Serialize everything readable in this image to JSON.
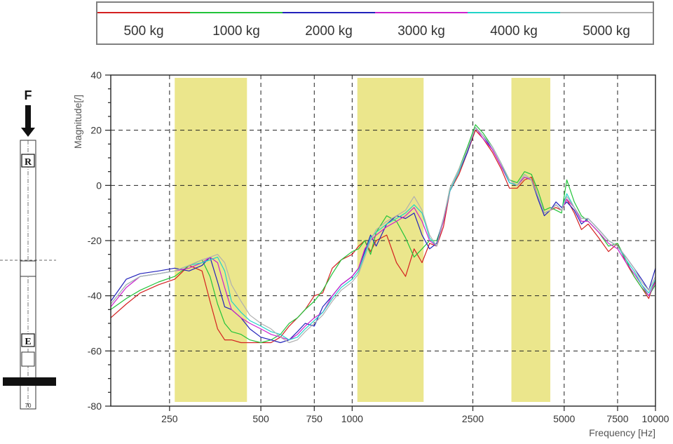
{
  "chart_data": {
    "type": "line",
    "xlabel": "Frequency [Hz]",
    "ylabel": "Magnitude[/]",
    "xlim": [
      160,
      10000
    ],
    "x_scale": "log",
    "ylim": [
      -80,
      40
    ],
    "grid": true,
    "legend_position": "top",
    "x_ticks": [
      250,
      500,
      750,
      1000,
      2500,
      5000,
      7500,
      10000
    ],
    "x_tick_labels": [
      "250",
      "500",
      "750",
      "1000",
      "2500",
      "5000",
      "7500",
      "10000"
    ],
    "y_ticks": [
      40,
      20,
      0,
      -20,
      -40,
      -60,
      -80
    ],
    "bands": [
      {
        "from": 260,
        "to": 450,
        "color": "#ebe68c"
      },
      {
        "from": 1040,
        "to": 1720,
        "color": "#ebe68c"
      },
      {
        "from": 3350,
        "to": 4500,
        "color": "#ebe68c"
      }
    ],
    "series": [
      {
        "name": "500 kg",
        "color": "#d42020",
        "x": [
          160,
          180,
          200,
          230,
          260,
          290,
          320,
          340,
          360,
          380,
          400,
          430,
          460,
          500,
          540,
          580,
          620,
          660,
          700,
          750,
          800,
          860,
          920,
          1000,
          1050,
          1100,
          1150,
          1200,
          1300,
          1400,
          1500,
          1600,
          1700,
          1800,
          1900,
          2000,
          2100,
          2250,
          2400,
          2550,
          2700,
          2900,
          3100,
          3300,
          3500,
          3700,
          3900,
          4100,
          4300,
          4500,
          4700,
          4900,
          5100,
          5400,
          5700,
          6000,
          6500,
          7000,
          7500,
          8000,
          8500,
          9000,
          9500,
          10000
        ],
        "y": [
          -48,
          -43,
          -39,
          -36,
          -34,
          -29,
          -31,
          -42,
          -52,
          -56,
          -56,
          -57,
          -57,
          -57,
          -57,
          -55,
          -51,
          -48,
          -45,
          -40,
          -39,
          -30,
          -27,
          -25,
          -22,
          -20,
          -24,
          -20,
          -18,
          -28,
          -33,
          -23,
          -28,
          -21,
          -22,
          -15,
          -2,
          4,
          12,
          20,
          17,
          12,
          6,
          -1,
          -1,
          2,
          3,
          -4,
          -10,
          -9,
          -8,
          -9,
          -5,
          -10,
          -16,
          -14,
          -19,
          -24,
          -21,
          -28,
          -33,
          -37,
          -41,
          -34
        ]
      },
      {
        "name": "1000 kg",
        "color": "#22c43a",
        "x": [
          160,
          180,
          200,
          230,
          260,
          290,
          320,
          340,
          360,
          380,
          400,
          430,
          460,
          500,
          540,
          580,
          620,
          660,
          700,
          750,
          800,
          860,
          920,
          1000,
          1050,
          1100,
          1150,
          1200,
          1300,
          1400,
          1500,
          1600,
          1700,
          1800,
          1900,
          2000,
          2100,
          2250,
          2400,
          2550,
          2700,
          2900,
          3100,
          3300,
          3500,
          3700,
          3900,
          4100,
          4300,
          4500,
          4700,
          4900,
          5100,
          5400,
          5700,
          6000,
          6500,
          7000,
          7500,
          8000,
          8500,
          9000,
          9500,
          10000
        ],
        "y": [
          -45,
          -41,
          -38,
          -35,
          -33,
          -29,
          -27,
          -33,
          -43,
          -50,
          -53,
          -54,
          -56,
          -57,
          -56,
          -54,
          -50,
          -48,
          -45,
          -42,
          -38,
          -32,
          -27,
          -24,
          -23,
          -20,
          -25,
          -17,
          -11,
          -13,
          -19,
          -26,
          -23,
          -20,
          -20,
          -13,
          -1,
          6,
          14,
          22,
          19,
          14,
          8,
          2,
          1,
          5,
          4,
          -2,
          -9,
          -8,
          -9,
          -10,
          2,
          -6,
          -11,
          -13,
          -17,
          -22,
          -21,
          -27,
          -33,
          -37,
          -40,
          -36
        ]
      },
      {
        "name": "2000 kg",
        "color": "#2222bb",
        "x": [
          160,
          180,
          200,
          230,
          260,
          290,
          320,
          340,
          360,
          380,
          400,
          430,
          460,
          500,
          540,
          580,
          620,
          660,
          700,
          750,
          800,
          860,
          920,
          1000,
          1050,
          1100,
          1150,
          1200,
          1300,
          1400,
          1500,
          1600,
          1700,
          1800,
          1900,
          2000,
          2100,
          2250,
          2400,
          2550,
          2700,
          2900,
          3100,
          3300,
          3500,
          3700,
          3900,
          4100,
          4300,
          4500,
          4700,
          4900,
          5100,
          5400,
          5700,
          6000,
          6500,
          7000,
          7500,
          8000,
          8500,
          9000,
          9500,
          10000
        ],
        "y": [
          -42,
          -34,
          -32,
          -31,
          -30,
          -31,
          -29,
          -26,
          -35,
          -44,
          -45,
          -48,
          -52,
          -55,
          -56,
          -57,
          -56,
          -53,
          -50,
          -51,
          -44,
          -40,
          -36,
          -33,
          -30,
          -24,
          -18,
          -22,
          -14,
          -11,
          -12,
          -10,
          -18,
          -23,
          -21,
          -12,
          -2,
          5,
          12,
          21,
          18,
          13,
          7,
          1,
          0,
          3,
          2,
          -5,
          -11,
          -9,
          -6,
          -8,
          -6,
          -9,
          -14,
          -12,
          -16,
          -20,
          -22,
          -26,
          -30,
          -34,
          -38,
          -30
        ]
      },
      {
        "name": "3000 kg",
        "color": "#cc22cc",
        "x": [
          160,
          180,
          200,
          230,
          260,
          290,
          320,
          340,
          360,
          380,
          400,
          430,
          460,
          500,
          540,
          580,
          620,
          660,
          700,
          750,
          800,
          860,
          920,
          1000,
          1050,
          1100,
          1150,
          1200,
          1300,
          1400,
          1500,
          1600,
          1700,
          1800,
          1900,
          2000,
          2100,
          2250,
          2400,
          2550,
          2700,
          2900,
          3100,
          3300,
          3500,
          3700,
          3900,
          4100,
          4300,
          4500,
          4700,
          4900,
          5100,
          5400,
          5700,
          6000,
          6500,
          7000,
          7500,
          8000,
          8500,
          9000,
          9500,
          10000
        ],
        "y": [
          -44,
          -37,
          -33,
          -32,
          -31,
          -30,
          -28,
          -26,
          -28,
          -37,
          -45,
          -48,
          -50,
          -52,
          -54,
          -55,
          -56,
          -54,
          -51,
          -48,
          -46,
          -40,
          -36,
          -33,
          -30,
          -23,
          -20,
          -18,
          -15,
          -13,
          -11,
          -8,
          -13,
          -20,
          -22,
          -13,
          -2,
          5,
          13,
          21,
          17,
          13,
          7,
          1,
          0,
          3,
          2,
          -4,
          -10,
          -9,
          -7,
          -9,
          -5,
          -8,
          -13,
          -13,
          -17,
          -21,
          -23,
          -28,
          -32,
          -36,
          -40,
          -35
        ]
      },
      {
        "name": "4000 kg",
        "color": "#22d4c8",
        "x": [
          160,
          180,
          200,
          230,
          260,
          290,
          320,
          340,
          360,
          380,
          400,
          430,
          460,
          500,
          540,
          580,
          620,
          660,
          700,
          750,
          800,
          860,
          920,
          1000,
          1050,
          1100,
          1150,
          1200,
          1300,
          1400,
          1500,
          1600,
          1700,
          1800,
          1900,
          2000,
          2100,
          2250,
          2400,
          2550,
          2700,
          2900,
          3100,
          3300,
          3500,
          3700,
          3900,
          4100,
          4300,
          4500,
          4700,
          4900,
          5100,
          5400,
          5700,
          6000,
          6500,
          7000,
          7500,
          8000,
          8500,
          9000,
          9500,
          10000
        ],
        "y": [
          -43,
          -36,
          -33,
          -32,
          -31,
          -29,
          -28,
          -27,
          -26,
          -31,
          -42,
          -46,
          -49,
          -51,
          -53,
          -54,
          -56,
          -55,
          -52,
          -49,
          -46,
          -41,
          -37,
          -34,
          -31,
          -25,
          -19,
          -17,
          -14,
          -12,
          -10,
          -7,
          -10,
          -19,
          -22,
          -12,
          -2,
          5,
          13,
          21,
          18,
          14,
          8,
          1,
          0,
          4,
          2,
          -4,
          -10,
          -9,
          -7,
          -9,
          -3,
          -8,
          -12,
          -12,
          -16,
          -20,
          -22,
          -27,
          -31,
          -36,
          -39,
          -34
        ]
      },
      {
        "name": "5000 kg",
        "color": "#b0b0b0",
        "x": [
          160,
          180,
          200,
          230,
          260,
          290,
          320,
          340,
          360,
          380,
          400,
          430,
          460,
          500,
          540,
          580,
          620,
          660,
          700,
          750,
          800,
          860,
          920,
          1000,
          1050,
          1100,
          1150,
          1200,
          1300,
          1400,
          1500,
          1600,
          1700,
          1800,
          1900,
          2000,
          2100,
          2250,
          2400,
          2550,
          2700,
          2900,
          3100,
          3300,
          3500,
          3700,
          3900,
          4100,
          4300,
          4500,
          4700,
          4900,
          5100,
          5400,
          5700,
          6000,
          6500,
          7000,
          7500,
          8000,
          8500,
          9000,
          9500,
          10000
        ],
        "y": [
          -43,
          -36,
          -33,
          -32,
          -31,
          -29,
          -27,
          -26,
          -25,
          -28,
          -36,
          -42,
          -47,
          -50,
          -52,
          -55,
          -57,
          -56,
          -53,
          -50,
          -47,
          -42,
          -38,
          -35,
          -32,
          -26,
          -20,
          -16,
          -13,
          -11,
          -9,
          -4,
          -9,
          -18,
          -22,
          -12,
          -1,
          6,
          13,
          21,
          18,
          14,
          8,
          2,
          0,
          4,
          2,
          -4,
          -10,
          -9,
          -7,
          -9,
          -4,
          -8,
          -12,
          -12,
          -16,
          -20,
          -22,
          -26,
          -30,
          -35,
          -38,
          -33
        ]
      }
    ]
  },
  "schematic": {
    "force_label": "F",
    "top_marker": "R",
    "bottom_marker": "E",
    "base_label": "70"
  }
}
